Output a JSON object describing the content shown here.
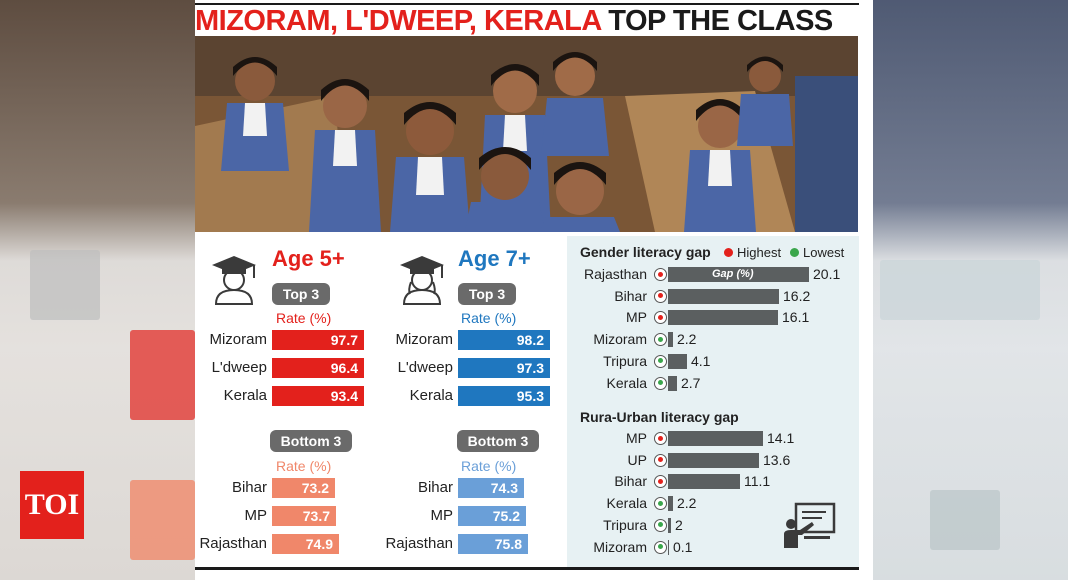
{
  "headline": {
    "part1": "MIZORAM, L'DWEEP, KERALA",
    "part2": "TOP THE CLASS"
  },
  "logo": "TOI",
  "colors": {
    "red": "#e3211c",
    "blue": "#1f77bf",
    "salmon": "#f0876a",
    "light_blue": "#6a9fd8",
    "highest": "#e3211c",
    "lowest": "#3aa64b",
    "gap_bar": "#5b5f60"
  },
  "icons": [
    "graduate-boy-icon",
    "graduate-girl-icon",
    "teacher-board-icon"
  ],
  "chart_data": [
    {
      "type": "bar",
      "title": "Age 5+",
      "groups": [
        {
          "label": "Top 3",
          "rate_label": "Rate (%)",
          "categories": [
            "Mizoram",
            "L'dweep",
            "Kerala"
          ],
          "values": [
            97.7,
            96.4,
            93.4
          ]
        },
        {
          "label": "Bottom 3",
          "rate_label": "Rate (%)",
          "categories": [
            "Bihar",
            "MP",
            "Rajasthan"
          ],
          "values": [
            73.2,
            73.7,
            74.9
          ]
        }
      ]
    },
    {
      "type": "bar",
      "title": "Age 7+",
      "groups": [
        {
          "label": "Top 3",
          "rate_label": "Rate (%)",
          "categories": [
            "Mizoram",
            "L'dweep",
            "Kerala"
          ],
          "values": [
            98.2,
            97.3,
            95.3
          ]
        },
        {
          "label": "Bottom 3",
          "rate_label": "Rate (%)",
          "categories": [
            "Bihar",
            "MP",
            "Rajasthan"
          ],
          "values": [
            74.3,
            75.2,
            75.8
          ]
        }
      ]
    },
    {
      "type": "bar",
      "title": "Gender literacy gap",
      "bar_label": "Gap (%)",
      "legend": [
        "Highest",
        "Lowest"
      ],
      "categories": [
        "Rajasthan",
        "Bihar",
        "MP",
        "Mizoram",
        "Tripura",
        "Kerala"
      ],
      "values": [
        20.1,
        16.2,
        16.1,
        2.2,
        4.1,
        2.7
      ],
      "groups": [
        "Highest",
        "Highest",
        "Highest",
        "Lowest",
        "Lowest",
        "Lowest"
      ]
    },
    {
      "type": "bar",
      "title": "Rura-Urban literacy gap",
      "categories": [
        "MP",
        "UP",
        "Bihar",
        "Kerala",
        "Tripura",
        "Mizoram"
      ],
      "values": [
        14.1,
        13.6,
        11.1,
        2.2,
        2,
        0.1
      ],
      "groups": [
        "Highest",
        "Highest",
        "Highest",
        "Lowest",
        "Lowest",
        "Lowest"
      ]
    }
  ]
}
